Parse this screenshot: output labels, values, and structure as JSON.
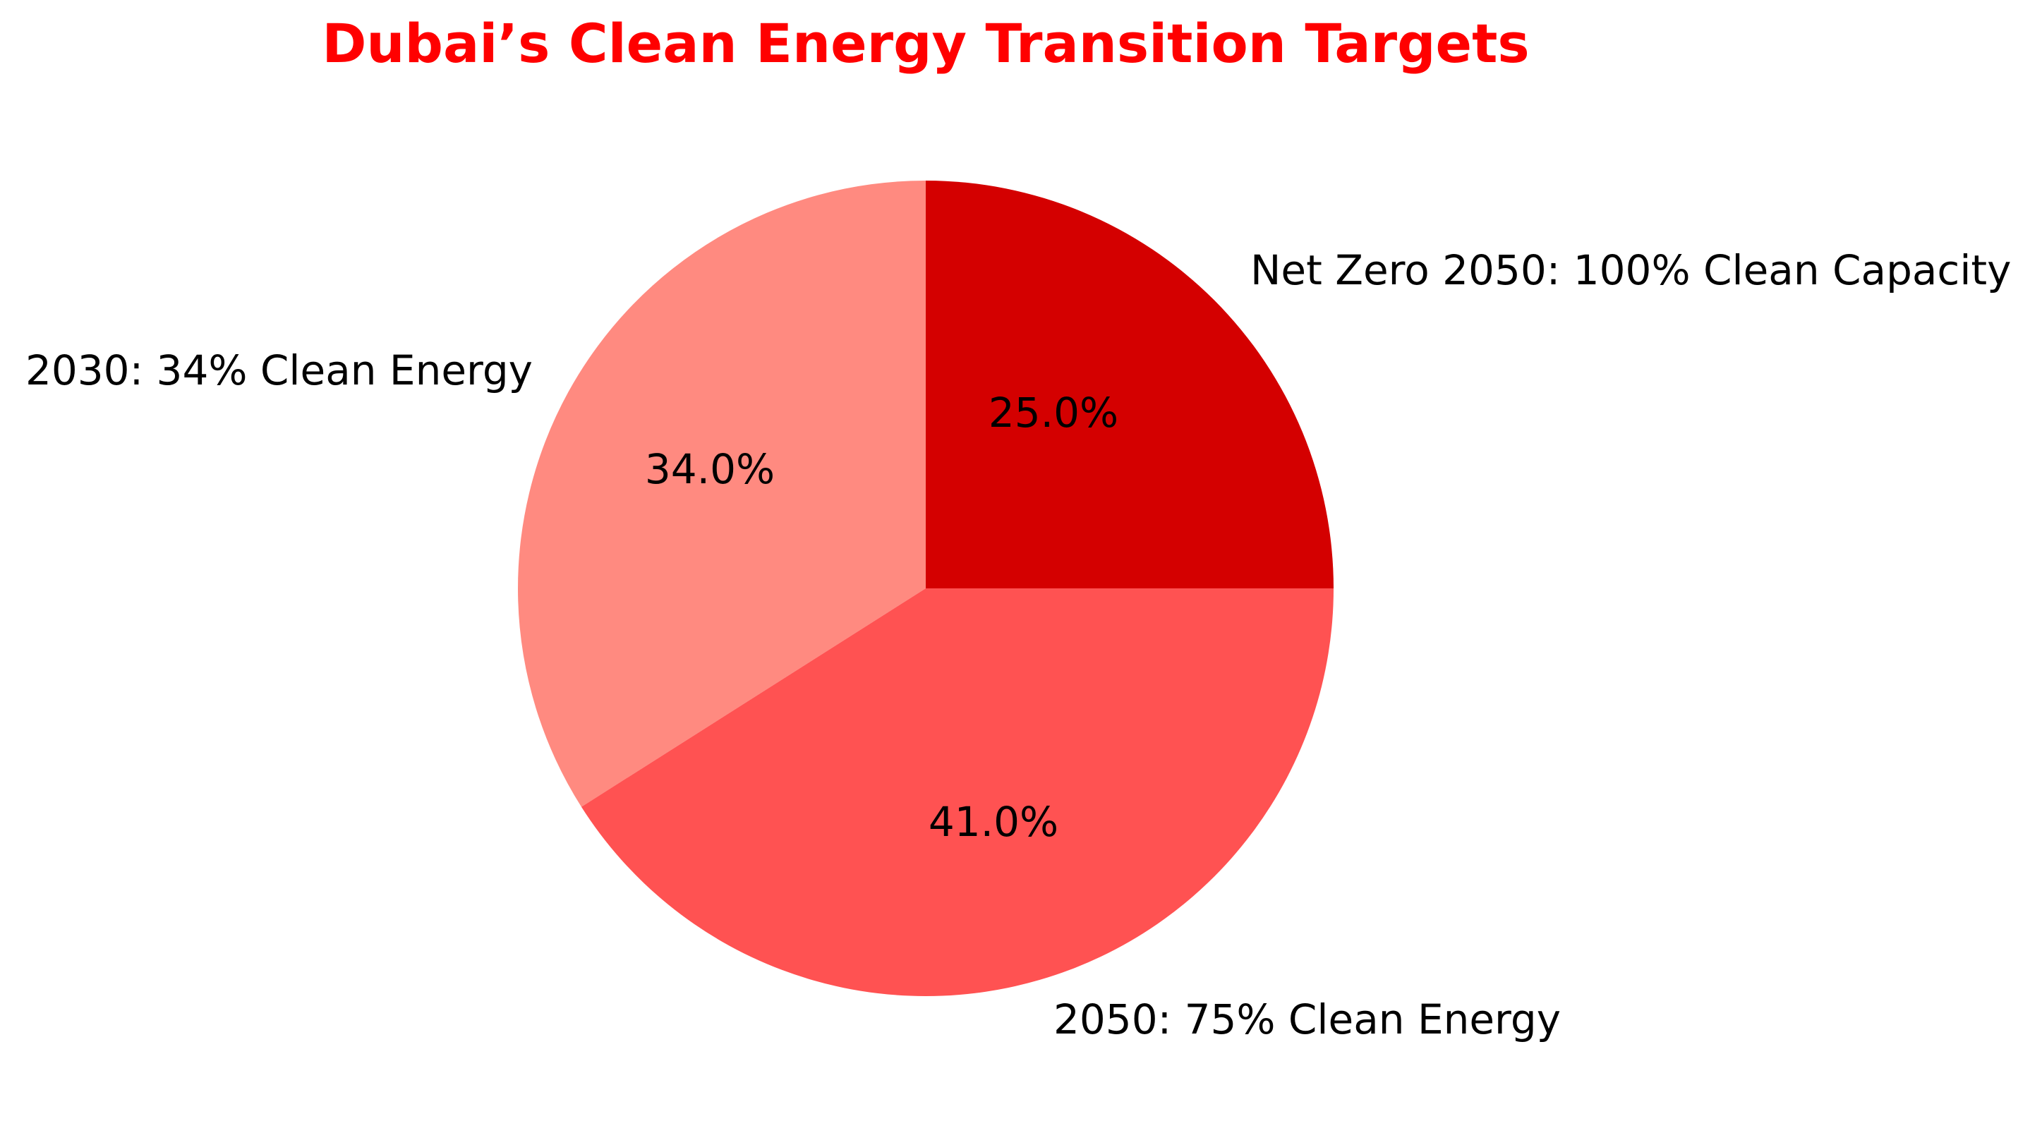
{
  "chart_data": {
    "type": "pie",
    "title": "Dubai’s Clean Energy Transition Targets",
    "title_color": "#FF0000",
    "categories": [
      "Net Zero 2050: 100% Clean Capacity",
      "2030: 34% Clean Energy",
      "2050: 75% Clean Energy"
    ],
    "values": [
      25,
      34,
      41
    ],
    "percent_labels": [
      "25.0%",
      "34.0%",
      "41.0%"
    ],
    "colors": [
      "#D40000",
      "#FF8A80",
      "#FF5252"
    ],
    "start_angle": 0,
    "direction": "counterclockwise",
    "legend": "none"
  },
  "title": "Dubai’s Clean Energy Transition Targets",
  "slices": [
    {
      "label": "Net Zero 2050: 100% Clean Capacity",
      "pct": "25.0%"
    },
    {
      "label": "2030: 34% Clean Energy",
      "pct": "34.0%"
    },
    {
      "label": "2050: 75% Clean Energy",
      "pct": "41.0%"
    }
  ]
}
